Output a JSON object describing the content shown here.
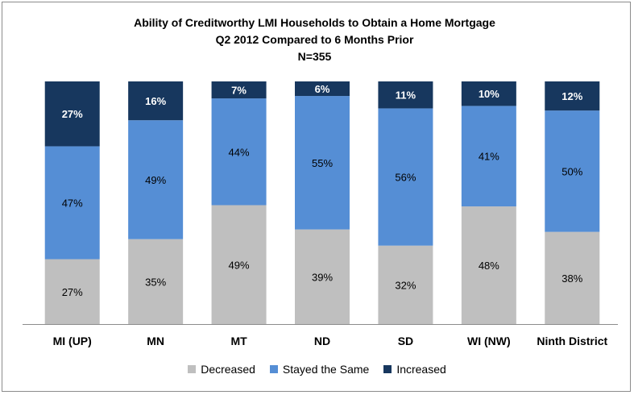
{
  "chart_data": {
    "type": "bar",
    "stacked": true,
    "title": "Ability of Creditworthy LMI Households to Obtain a Home Mortgage",
    "subtitle": "Q2 2012 Compared to 6 Months Prior",
    "note": "N=355",
    "categories": [
      "MI (UP)",
      "MN",
      "MT",
      "ND",
      "SD",
      "WI (NW)",
      "Ninth District"
    ],
    "series": [
      {
        "name": "Decreased",
        "color": "#bfbfbf",
        "values": [
          27,
          35,
          49,
          39,
          32,
          48,
          38
        ]
      },
      {
        "name": "Stayed the Same",
        "color": "#558ed5",
        "values": [
          47,
          49,
          44,
          55,
          56,
          41,
          50
        ]
      },
      {
        "name": "Increased",
        "color": "#17375e",
        "values": [
          27,
          16,
          7,
          6,
          11,
          10,
          12
        ]
      }
    ],
    "labels": [
      [
        "27%",
        "35%",
        "49%",
        "39%",
        "32%",
        "48%",
        "38%"
      ],
      [
        "47%",
        "49%",
        "44%",
        "55%",
        "56%",
        "41%",
        "50%"
      ],
      [
        "27%",
        "16%",
        "7%",
        "6%",
        "11%",
        "10%",
        "12%"
      ]
    ],
    "ylim": [
      0,
      100
    ],
    "grid": false,
    "legend_position": "bottom"
  }
}
